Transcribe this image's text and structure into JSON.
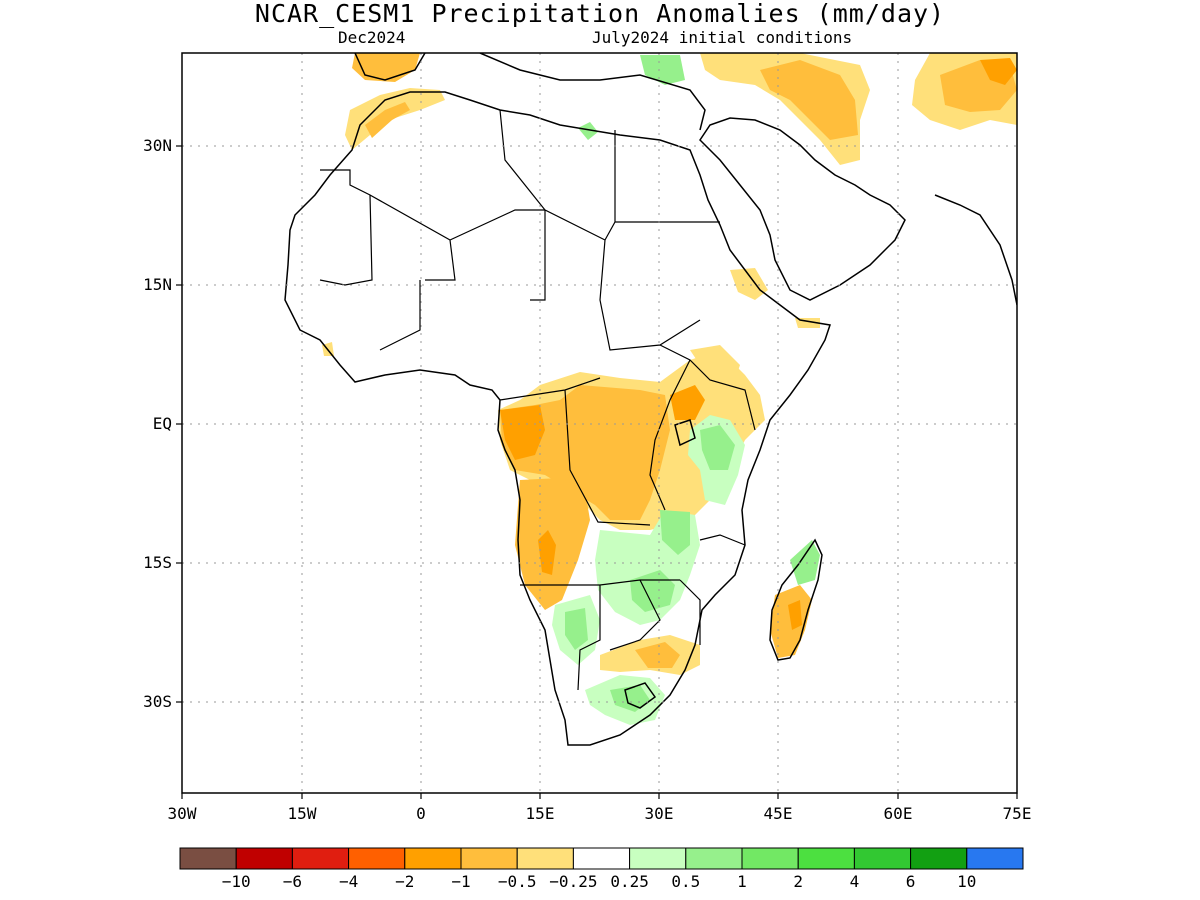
{
  "title": "NCAR_CESM1 Precipitation Anomalies (mm/day)",
  "subtitle_left": "Dec2024",
  "subtitle_right": "July2024 initial conditions",
  "axes": {
    "x_ticks": [
      "30W",
      "15W",
      "0",
      "15E",
      "30E",
      "45E",
      "60E",
      "75E"
    ],
    "y_ticks": [
      "30N",
      "15N",
      "EQ",
      "15S",
      "30S"
    ],
    "lon_range": [
      -30,
      75
    ],
    "lat_range": [
      -40,
      40
    ],
    "grid": "dotted"
  },
  "colorbar": {
    "colors": [
      "#7a4e42",
      "#c00000",
      "#e01e10",
      "#ff6000",
      "#ffa000",
      "#ffbe3c",
      "#ffe07a",
      "#ffffff",
      "#c8ffc0",
      "#96f08c",
      "#72e864",
      "#4ce040",
      "#32c832",
      "#12a012",
      "#2878f0"
    ],
    "labels": [
      "-10",
      "-6",
      "-4",
      "-2",
      "-1",
      "-0.5",
      "-0.25",
      "0.25",
      "0.5",
      "1",
      "2",
      "4",
      "6",
      "10"
    ]
  },
  "legend": {
    "palette": {
      "dry_light": "#ffe07a",
      "dry_mid": "#ffbe3c",
      "dry_strong": "#ffa000",
      "dry_max": "#ff6000",
      "wet_light": "#c8ffc0",
      "wet_mid": "#96f08c"
    }
  }
}
